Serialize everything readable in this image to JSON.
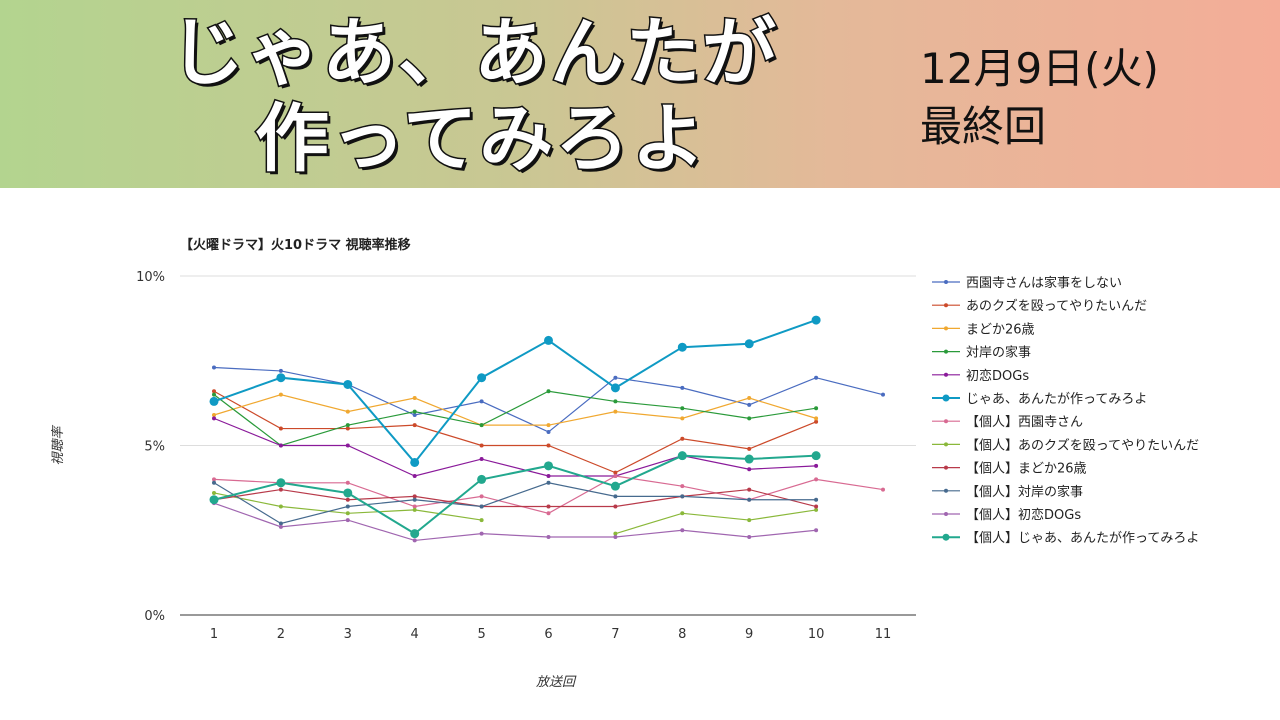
{
  "header": {
    "title_line1": "じゃあ、あんたが",
    "title_line2": "作ってみろよ",
    "date": "12月9日(火)",
    "note": "最終回"
  },
  "chart_data": {
    "type": "line",
    "title": "【火曜ドラマ】火10ドラマ 視聴率推移",
    "xlabel": "放送回",
    "ylabel": "視聴率",
    "x": [
      1,
      2,
      3,
      4,
      5,
      6,
      7,
      8,
      9,
      10,
      11
    ],
    "ylim": [
      0,
      10
    ],
    "yticks": [
      "0%",
      "5%",
      "10%"
    ],
    "grid": "horizontal",
    "legend": "right",
    "series": [
      {
        "name": "西園寺さんは家事をしない",
        "color": "#4a6cc0",
        "values": [
          7.3,
          7.2,
          6.8,
          5.9,
          6.3,
          5.4,
          7.0,
          6.7,
          6.2,
          7.0,
          6.5
        ]
      },
      {
        "name": "あのクズを殴ってやりたいんだ",
        "color": "#cc4a2a",
        "values": [
          6.6,
          5.5,
          5.5,
          5.6,
          5.0,
          5.0,
          4.2,
          5.2,
          4.9,
          5.7,
          null
        ]
      },
      {
        "name": "まどか26歳",
        "color": "#f0a830",
        "values": [
          5.9,
          6.5,
          6.0,
          6.4,
          5.6,
          5.6,
          6.0,
          5.8,
          6.4,
          5.8,
          null
        ]
      },
      {
        "name": "対岸の家事",
        "color": "#2a9a3a",
        "values": [
          6.5,
          5.0,
          5.6,
          6.0,
          5.6,
          6.6,
          6.3,
          6.1,
          5.8,
          6.1,
          null
        ]
      },
      {
        "name": "初恋DOGs",
        "color": "#8a1a9a",
        "values": [
          5.8,
          5.0,
          5.0,
          4.1,
          4.6,
          4.1,
          4.1,
          4.7,
          4.3,
          4.4,
          null
        ]
      },
      {
        "name": "じゃあ、あんたが作ってみろよ",
        "color": "#0f9ac4",
        "bold": true,
        "values": [
          6.3,
          7.0,
          6.8,
          4.5,
          7.0,
          8.1,
          6.7,
          7.9,
          8.0,
          8.7,
          null
        ]
      },
      {
        "name": "【個人】西園寺さん",
        "color": "#d86a92",
        "values": [
          4.0,
          3.9,
          3.9,
          3.2,
          3.5,
          3.0,
          4.1,
          3.8,
          3.4,
          4.0,
          3.7
        ]
      },
      {
        "name": "【個人】あのクズを殴ってやりたいんだ",
        "color": "#8ab83a",
        "values": [
          3.6,
          3.2,
          3.0,
          3.1,
          2.8,
          null,
          2.4,
          3.0,
          2.8,
          3.1,
          null
        ]
      },
      {
        "name": "【個人】まどか26歳",
        "color": "#b83a4a",
        "values": [
          3.4,
          3.7,
          3.4,
          3.5,
          3.2,
          3.2,
          3.2,
          3.5,
          3.7,
          3.2,
          null
        ]
      },
      {
        "name": "【個人】対岸の家事",
        "color": "#466a8e",
        "values": [
          3.9,
          2.7,
          3.2,
          3.4,
          3.2,
          3.9,
          3.5,
          3.5,
          3.4,
          3.4,
          null
        ]
      },
      {
        "name": "【個人】初恋DOGs",
        "color": "#a066b0",
        "values": [
          3.3,
          2.6,
          2.8,
          2.2,
          2.4,
          2.3,
          2.3,
          2.5,
          2.3,
          2.5,
          null
        ]
      },
      {
        "name": "【個人】じゃあ、あんたが作ってみろよ",
        "color": "#22a88e",
        "bold": true,
        "values": [
          3.4,
          3.9,
          3.6,
          2.4,
          4.0,
          4.4,
          3.8,
          4.7,
          4.6,
          4.7,
          null
        ]
      }
    ]
  }
}
